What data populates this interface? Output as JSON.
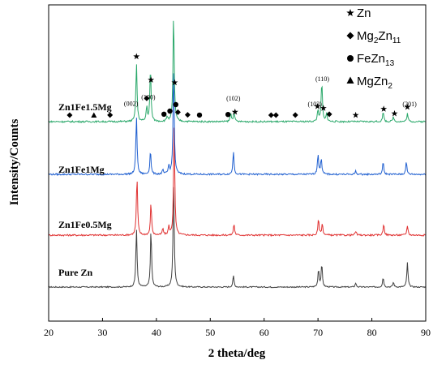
{
  "chart_data": {
    "type": "line",
    "title": "",
    "xlabel": "2 theta/deg",
    "ylabel": "Intensity/Counts",
    "xlim": [
      20,
      90
    ],
    "xticks": [
      "20",
      "30",
      "40",
      "50",
      "60",
      "70",
      "80",
      "90"
    ],
    "grid": false,
    "legend_position": "top-right",
    "legend": [
      {
        "symbol": "star",
        "label": "Zn"
      },
      {
        "symbol": "diamond",
        "label_main": "Mg",
        "sub1": "2",
        "label_mid": "Zn",
        "sub2": "11"
      },
      {
        "symbol": "circle",
        "label_main": "FeZn",
        "sub1": "13"
      },
      {
        "symbol": "triangle",
        "label_main": "MgZn",
        "sub1": "2"
      }
    ],
    "series": [
      {
        "name": "Pure Zn",
        "color": "#404040",
        "baseline": 0,
        "noise": 1.5,
        "peaks": [
          [
            36.3,
            72
          ],
          [
            39.0,
            72
          ],
          [
            43.2,
            135
          ],
          [
            54.3,
            14
          ],
          [
            70.1,
            22
          ],
          [
            70.7,
            28
          ],
          [
            77.0,
            5
          ],
          [
            82.1,
            12
          ],
          [
            84.0,
            6
          ],
          [
            86.6,
            30
          ]
        ]
      },
      {
        "name": "Zn1Fe0.5Mg",
        "color": "#e03030",
        "baseline": 64,
        "noise": 2,
        "peaks": [
          [
            36.4,
            72
          ],
          [
            39.0,
            40
          ],
          [
            41.2,
            8
          ],
          [
            42.3,
            10
          ],
          [
            43.3,
            135
          ],
          [
            54.4,
            14
          ],
          [
            70.1,
            20
          ],
          [
            70.8,
            14
          ],
          [
            77.0,
            5
          ],
          [
            82.2,
            14
          ],
          [
            86.6,
            12
          ]
        ]
      },
      {
        "name": "Zn1Fe1Mg",
        "color": "#1f5fd0",
        "baseline": 139,
        "noise": 2,
        "peaks": [
          [
            36.3,
            72
          ],
          [
            38.9,
            30
          ],
          [
            41.2,
            5
          ],
          [
            42.3,
            10
          ],
          [
            43.2,
            135
          ],
          [
            54.3,
            28
          ],
          [
            70.0,
            25
          ],
          [
            70.6,
            20
          ],
          [
            77.0,
            4
          ],
          [
            82.1,
            15
          ],
          [
            86.4,
            15
          ]
        ]
      },
      {
        "name": "Zn1Fe1.5Mg",
        "color": "#2aa86a",
        "baseline": 204,
        "noise": 2,
        "peaks": [
          [
            36.3,
            72
          ],
          [
            38.2,
            18
          ],
          [
            38.9,
            68
          ],
          [
            42.0,
            6
          ],
          [
            43.2,
            135
          ],
          [
            53.8,
            10
          ],
          [
            54.4,
            12
          ],
          [
            70.0,
            15
          ],
          [
            70.7,
            50
          ],
          [
            71.6,
            10
          ],
          [
            82.1,
            12
          ],
          [
            84.0,
            6
          ],
          [
            86.6,
            10
          ]
        ]
      }
    ],
    "peak_labels": [
      {
        "text": "(002)",
        "x": 35.3
      },
      {
        "text": "(100)",
        "x": 38.5
      },
      {
        "text": "(101)",
        "x": 43.2
      },
      {
        "text": "(102)",
        "x": 54.3
      },
      {
        "text": "(103)",
        "x": 69.4
      },
      {
        "text": "(110)",
        "x": 70.8
      },
      {
        "text": "(201)",
        "x": 87.0
      }
    ],
    "phase_markers": [
      {
        "type": "star",
        "x": 36.3
      },
      {
        "type": "star",
        "x": 39.0
      },
      {
        "type": "star",
        "x": 43.4
      },
      {
        "type": "star",
        "x": 54.6
      },
      {
        "type": "star",
        "x": 69.9
      },
      {
        "type": "star",
        "x": 71.0
      },
      {
        "type": "star",
        "x": 77.0
      },
      {
        "type": "star",
        "x": 82.2
      },
      {
        "type": "star",
        "x": 84.2
      },
      {
        "type": "star",
        "x": 86.6
      },
      {
        "type": "diamond",
        "x": 23.9
      },
      {
        "type": "diamond",
        "x": 31.4
      },
      {
        "type": "diamond",
        "x": 38.2
      },
      {
        "type": "diamond",
        "x": 44.0
      },
      {
        "type": "diamond",
        "x": 45.8
      },
      {
        "type": "diamond",
        "x": 61.3
      },
      {
        "type": "diamond",
        "x": 62.2
      },
      {
        "type": "diamond",
        "x": 65.8
      },
      {
        "type": "diamond",
        "x": 72.1
      },
      {
        "type": "circle",
        "x": 41.4
      },
      {
        "type": "circle",
        "x": 42.5
      },
      {
        "type": "circle",
        "x": 43.6
      },
      {
        "type": "circle",
        "x": 48.0
      },
      {
        "type": "circle",
        "x": 53.3
      },
      {
        "type": "triangle",
        "x": 28.4
      }
    ]
  }
}
